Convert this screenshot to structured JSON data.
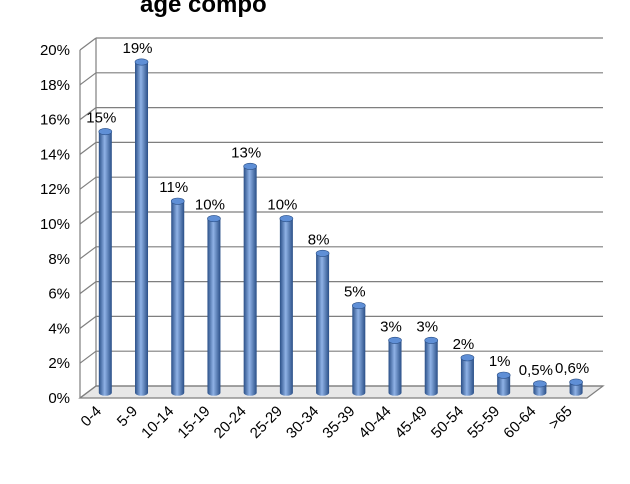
{
  "chart_data": {
    "type": "bar",
    "title": "age compo",
    "categories": [
      "0-4",
      "5-9",
      "10-14",
      "15-19",
      "20-24",
      "25-29",
      "30-34",
      "35-39",
      "40-44",
      "45-49",
      "50-54",
      "55-59",
      "60-64",
      ">65"
    ],
    "values": [
      15,
      19,
      11,
      10,
      13,
      10,
      8,
      5,
      3,
      3,
      2,
      1,
      0.5,
      0.6
    ],
    "data_labels": [
      "15%",
      "19%",
      "11%",
      "10%",
      "13%",
      "10%",
      "8%",
      "5%",
      "3%",
      "3%",
      "2%",
      "1%",
      "0,5%",
      "0,6%"
    ],
    "y_ticks": [
      "0%",
      "2%",
      "4%",
      "6%",
      "8%",
      "10%",
      "12%",
      "14%",
      "16%",
      "18%",
      "20%"
    ],
    "ylim": [
      0,
      20
    ],
    "grid": true,
    "legend": "none",
    "colors": {
      "bar_dark": "#2a4f87",
      "bar_mid": "#4a7cc4",
      "bar_light": "#8fb2e6",
      "bar_top": "#5f8fd6",
      "grid": "#7f7f7f",
      "wall": "#ffffff",
      "floor": "#e7e7e7"
    }
  }
}
